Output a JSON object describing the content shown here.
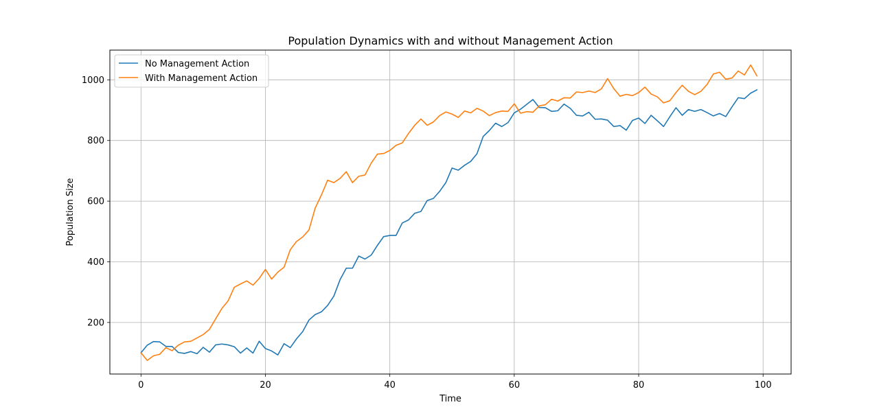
{
  "chart_data": {
    "type": "line",
    "title": "Population Dynamics with and without Management Action",
    "xlabel": "Time",
    "ylabel": "Population Size",
    "xlim": [
      -5,
      104.5
    ],
    "ylim": [
      30,
      1098
    ],
    "xticks": [
      0,
      20,
      40,
      60,
      80,
      100
    ],
    "yticks": [
      200,
      400,
      600,
      800,
      1000
    ],
    "grid": true,
    "legend_position": "top-left",
    "x": [
      0,
      1,
      2,
      3,
      4,
      5,
      6,
      7,
      8,
      9,
      10,
      11,
      12,
      13,
      14,
      15,
      16,
      17,
      18,
      19,
      20,
      21,
      22,
      23,
      24,
      25,
      26,
      27,
      28,
      29,
      30,
      31,
      32,
      33,
      34,
      35,
      36,
      37,
      38,
      39,
      40,
      41,
      42,
      43,
      44,
      45,
      46,
      47,
      48,
      49,
      50,
      51,
      52,
      53,
      54,
      55,
      56,
      57,
      58,
      59,
      60,
      61,
      62,
      63,
      64,
      65,
      66,
      67,
      68,
      69,
      70,
      71,
      72,
      73,
      74,
      75,
      76,
      77,
      78,
      79,
      80,
      81,
      82,
      83,
      84,
      85,
      86,
      87,
      88,
      89,
      90,
      91,
      92,
      93,
      94,
      95,
      96,
      97,
      98,
      99
    ],
    "series": [
      {
        "name": "No Management Action",
        "color": "#1f77b4",
        "values": [
          100,
          125,
          137,
          136,
          121,
          121,
          101,
          98,
          104,
          97,
          118,
          102,
          126,
          129,
          126,
          120,
          99,
          116,
          99,
          138,
          114,
          106,
          93,
          130,
          117,
          146,
          170,
          208,
          226,
          235,
          256,
          287,
          341,
          379,
          379,
          419,
          409,
          422,
          454,
          483,
          487,
          487,
          528,
          538,
          560,
          566,
          602,
          609,
          632,
          661,
          709,
          702,
          718,
          731,
          756,
          813,
          833,
          857,
          846,
          859,
          891,
          903,
          919,
          935,
          909,
          908,
          896,
          898,
          920,
          906,
          883,
          881,
          893,
          870,
          871,
          867,
          846,
          849,
          834,
          866,
          874,
          856,
          883,
          865,
          846,
          878,
          908,
          883,
          902,
          896,
          902,
          892,
          881,
          889,
          879,
          911,
          941,
          938,
          956,
          967
        ]
      },
      {
        "name": "With Management Action",
        "color": "#ff7f0e",
        "values": [
          100,
          75,
          90,
          95,
          117,
          107,
          125,
          136,
          138,
          149,
          160,
          177,
          212,
          246,
          271,
          316,
          327,
          337,
          323,
          345,
          375,
          343,
          366,
          382,
          440,
          467,
          482,
          505,
          577,
          620,
          669,
          661,
          675,
          697,
          661,
          682,
          686,
          725,
          755,
          757,
          767,
          784,
          792,
          823,
          850,
          871,
          850,
          861,
          882,
          894,
          887,
          876,
          897,
          891,
          906,
          897,
          882,
          892,
          897,
          896,
          921,
          890,
          895,
          893,
          914,
          918,
          936,
          930,
          941,
          940,
          960,
          958,
          963,
          958,
          970,
          1004,
          971,
          946,
          952,
          948,
          958,
          976,
          953,
          944,
          924,
          931,
          958,
          982,
          962,
          951,
          962,
          985,
          1019,
          1025,
          1002,
          1006,
          1029,
          1016,
          1049,
          1013
        ]
      }
    ]
  }
}
